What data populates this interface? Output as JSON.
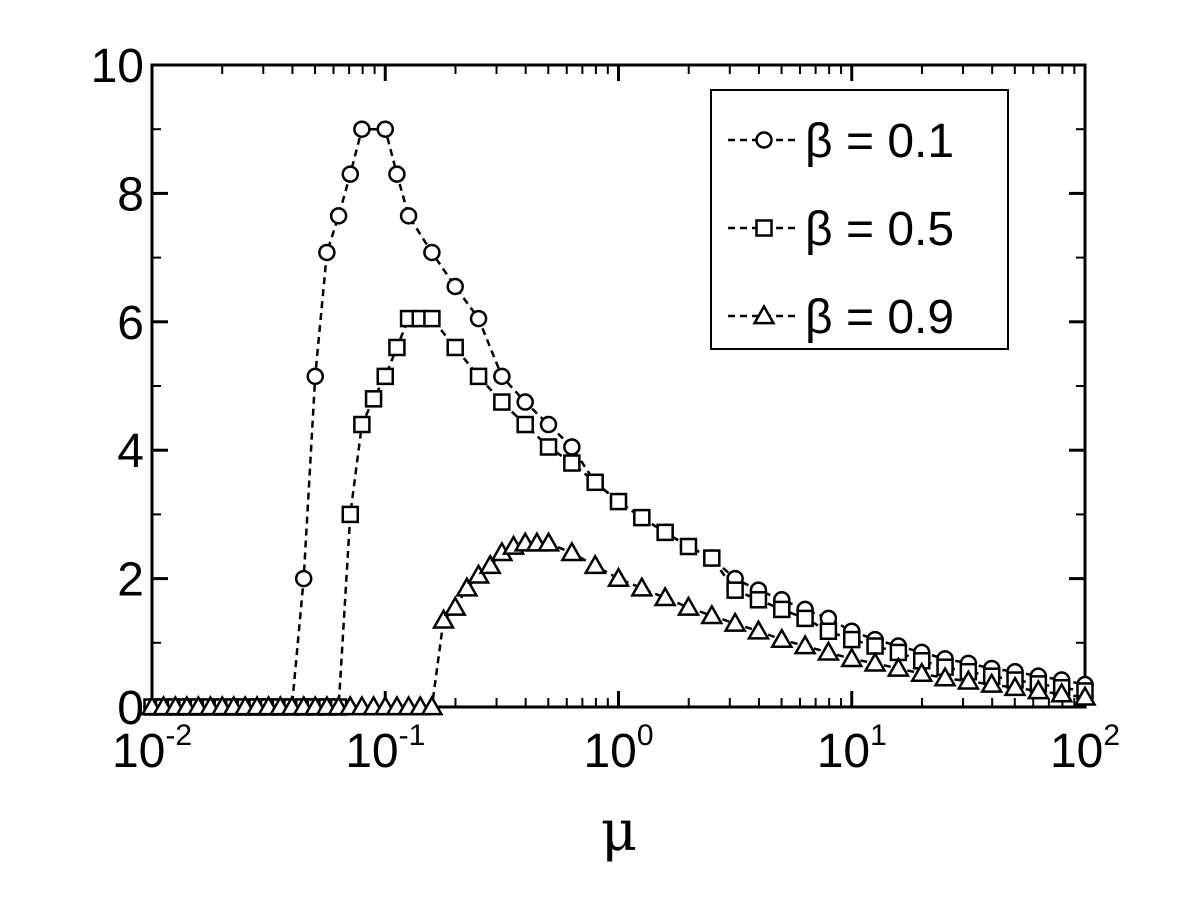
{
  "chart_data": {
    "type": "line",
    "title": "",
    "xlabel": "μ",
    "ylabel": "",
    "xscale": "log",
    "xlim": [
      0.01,
      100
    ],
    "ylim": [
      0,
      10
    ],
    "grid": false,
    "legend_position": "top-right",
    "x_ticks": [
      {
        "base": "10",
        "exp": "-2",
        "value": 0.01
      },
      {
        "base": "10",
        "exp": "-1",
        "value": 0.1
      },
      {
        "base": "10",
        "exp": "0",
        "value": 1
      },
      {
        "base": "10",
        "exp": "1",
        "value": 10
      },
      {
        "base": "10",
        "exp": "2",
        "value": 100
      }
    ],
    "y_ticks": [
      "0",
      "2",
      "4",
      "6",
      "8",
      "10"
    ],
    "series": [
      {
        "name": "β = 0.1",
        "marker": "circle",
        "x": [
          0.01,
          0.0112,
          0.0126,
          0.0141,
          0.0158,
          0.0178,
          0.02,
          0.0224,
          0.0251,
          0.0282,
          0.0316,
          0.0355,
          0.0398,
          0.0447,
          0.0501,
          0.0562,
          0.0631,
          0.0708,
          0.0794,
          0.1,
          0.1122,
          0.1259,
          0.1585,
          0.1995,
          0.2512,
          0.3162,
          0.3981,
          0.5012,
          0.631,
          0.7943,
          1.0,
          1.2589,
          1.5849,
          1.9953,
          2.5119,
          3.1623,
          3.9811,
          5.0119,
          6.3096,
          7.9433,
          10.0,
          12.589,
          15.849,
          19.953,
          25.119,
          31.623,
          39.811,
          50.119,
          63.096,
          79.433,
          100.0
        ],
        "y": [
          0,
          0,
          0,
          0,
          0,
          0,
          0,
          0,
          0,
          0,
          0,
          0,
          0,
          2.0,
          5.15,
          7.08,
          7.65,
          8.3,
          9.0,
          9.0,
          8.3,
          7.65,
          7.08,
          6.55,
          6.05,
          5.15,
          4.75,
          4.4,
          4.05,
          3.5,
          3.2,
          2.95,
          2.72,
          2.5,
          2.32,
          2.0,
          1.82,
          1.67,
          1.52,
          1.38,
          1.18,
          1.05,
          0.95,
          0.85,
          0.75,
          0.68,
          0.6,
          0.55,
          0.48,
          0.42,
          0.35
        ]
      },
      {
        "name": "β = 0.5",
        "marker": "square",
        "x": [
          0.01,
          0.0112,
          0.0126,
          0.0141,
          0.0158,
          0.0178,
          0.02,
          0.0224,
          0.0251,
          0.0282,
          0.0316,
          0.0355,
          0.0398,
          0.0447,
          0.0501,
          0.0562,
          0.0631,
          0.0708,
          0.0794,
          0.0891,
          0.1,
          0.1122,
          0.1259,
          0.1413,
          0.1585,
          0.1995,
          0.2512,
          0.3162,
          0.3981,
          0.5012,
          0.631,
          0.7943,
          1.0,
          1.2589,
          1.5849,
          1.9953,
          2.5119,
          3.1623,
          3.9811,
          5.0119,
          6.3096,
          7.9433,
          10.0,
          12.589,
          15.849,
          19.953,
          25.119,
          31.623,
          39.811,
          50.119,
          63.096,
          79.433,
          100.0
        ],
        "y": [
          0,
          0,
          0,
          0,
          0,
          0,
          0,
          0,
          0,
          0,
          0,
          0,
          0,
          0,
          0,
          0,
          0,
          3.0,
          4.4,
          4.8,
          5.15,
          5.6,
          6.05,
          6.05,
          6.05,
          5.6,
          5.15,
          4.75,
          4.4,
          4.05,
          3.8,
          3.5,
          3.2,
          2.95,
          2.72,
          2.5,
          2.32,
          1.82,
          1.67,
          1.52,
          1.38,
          1.18,
          1.05,
          0.95,
          0.85,
          0.72,
          0.62,
          0.55,
          0.48,
          0.42,
          0.36,
          0.3,
          0.25
        ]
      },
      {
        "name": "β = 0.9",
        "marker": "triangle",
        "x": [
          0.01,
          0.0112,
          0.0126,
          0.0141,
          0.0158,
          0.0178,
          0.02,
          0.0224,
          0.0251,
          0.0282,
          0.0316,
          0.0355,
          0.0398,
          0.0447,
          0.0501,
          0.0562,
          0.0631,
          0.0708,
          0.0794,
          0.0891,
          0.1,
          0.1122,
          0.1259,
          0.1413,
          0.1585,
          0.1778,
          0.1995,
          0.2239,
          0.2512,
          0.2818,
          0.3162,
          0.3548,
          0.3981,
          0.4467,
          0.5012,
          0.631,
          0.7943,
          1.0,
          1.2589,
          1.5849,
          1.9953,
          2.5119,
          3.1623,
          3.9811,
          5.0119,
          6.3096,
          7.9433,
          10.0,
          12.589,
          15.849,
          19.953,
          25.119,
          31.623,
          39.811,
          50.119,
          63.096,
          79.433,
          100.0
        ],
        "y": [
          0,
          0,
          0,
          0,
          0,
          0,
          0,
          0,
          0,
          0,
          0,
          0,
          0,
          0,
          0,
          0,
          0,
          0,
          0,
          0,
          0,
          0,
          0,
          0,
          0,
          1.35,
          1.55,
          1.85,
          2.05,
          2.2,
          2.4,
          2.5,
          2.55,
          2.55,
          2.55,
          2.4,
          2.2,
          2.0,
          1.85,
          1.7,
          1.55,
          1.42,
          1.3,
          1.18,
          1.05,
          0.95,
          0.85,
          0.75,
          0.68,
          0.6,
          0.52,
          0.45,
          0.4,
          0.35,
          0.3,
          0.25,
          0.2,
          0.15
        ]
      }
    ]
  }
}
